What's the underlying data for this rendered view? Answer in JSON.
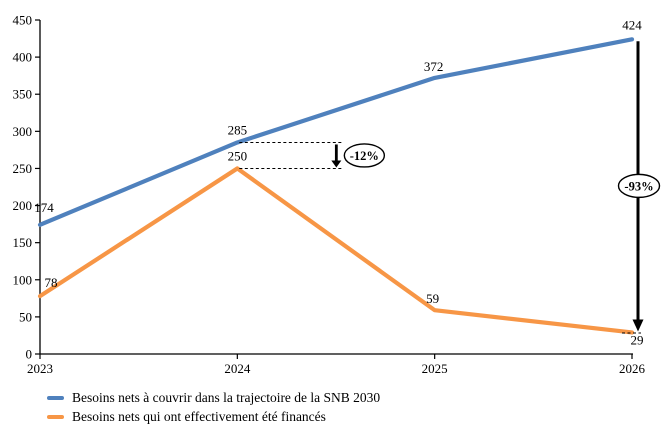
{
  "chart_data": {
    "type": "line",
    "title": "",
    "xlabel": "",
    "ylabel": "",
    "x_categories": [
      "2023",
      "2024",
      "2025",
      "2026"
    ],
    "series": [
      {
        "name": "Besoins nets à couvrir dans la trajectoire de la SNB 2030",
        "color": "#4F81BD",
        "values": [
          174,
          285,
          372,
          424
        ]
      },
      {
        "name": "Besoins nets qui ont effectivement été financés",
        "color": "#F79646",
        "values": [
          78,
          250,
          59,
          29
        ]
      }
    ],
    "ylim": [
      0,
      450
    ],
    "yticks": [
      0,
      50,
      100,
      150,
      200,
      250,
      300,
      350,
      400,
      450
    ],
    "grid": false,
    "legend_position": "bottom-left",
    "axis_color": "#000000",
    "annotation_color": "#000000",
    "annotations": [
      {
        "label": "-12%",
        "x": "2024",
        "from_value": 285,
        "to_value": 250,
        "type": "step-gap"
      },
      {
        "label": "-93%",
        "x": "2026",
        "from_value": 424,
        "to_value": 29,
        "type": "drop"
      }
    ]
  }
}
